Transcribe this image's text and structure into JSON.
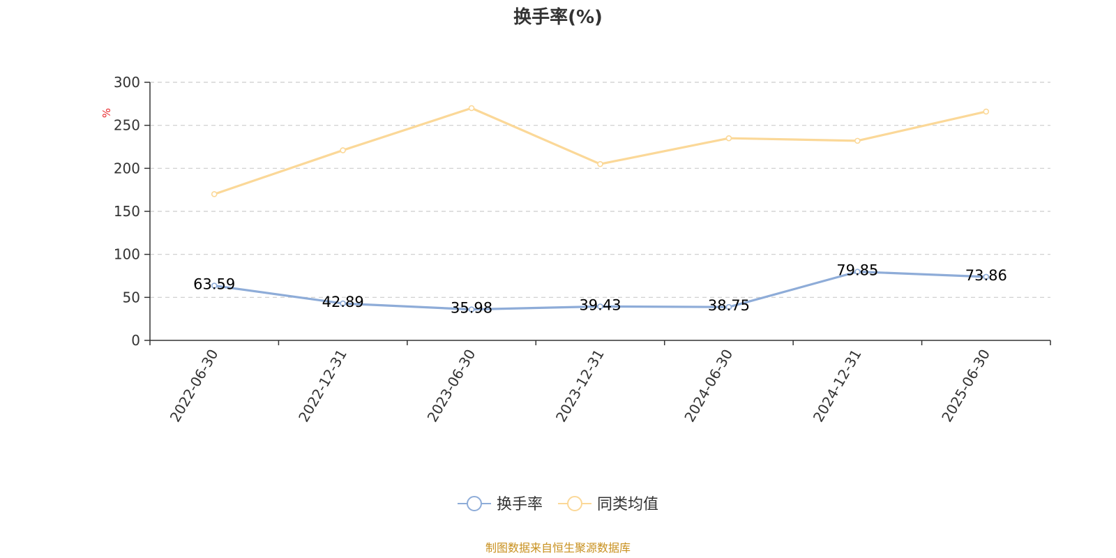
{
  "chart_data": {
    "type": "line",
    "title": "换手率(%)",
    "ylabel": "%",
    "xlabel": "",
    "categories": [
      "2022-06-30",
      "2022-12-31",
      "2023-06-30",
      "2023-12-31",
      "2024-06-30",
      "2024-12-31",
      "2025-06-30"
    ],
    "ylim": [
      0,
      300
    ],
    "yticks": [
      0,
      50,
      100,
      150,
      200,
      250,
      300
    ],
    "grid": true,
    "legend_position": "bottom",
    "series": [
      {
        "name": "换手率",
        "values": [
          63.59,
          42.89,
          35.98,
          39.43,
          38.75,
          79.85,
          73.86
        ],
        "labels": [
          "63.59",
          "42.89",
          "35.98",
          "39.43",
          "38.75",
          "79.85",
          "73.86"
        ],
        "show_labels": true,
        "color": "#8eacd8"
      },
      {
        "name": "同类均值",
        "values": [
          170,
          221,
          270,
          205,
          235,
          232,
          266
        ],
        "show_labels": false,
        "color": "#fbd898"
      }
    ],
    "source": "制图数据来自恒生聚源数据库",
    "colors": {
      "axis": "#333333",
      "grid": "#cccccc",
      "ylabel": "#e8262a",
      "source": "#c8901e"
    }
  }
}
